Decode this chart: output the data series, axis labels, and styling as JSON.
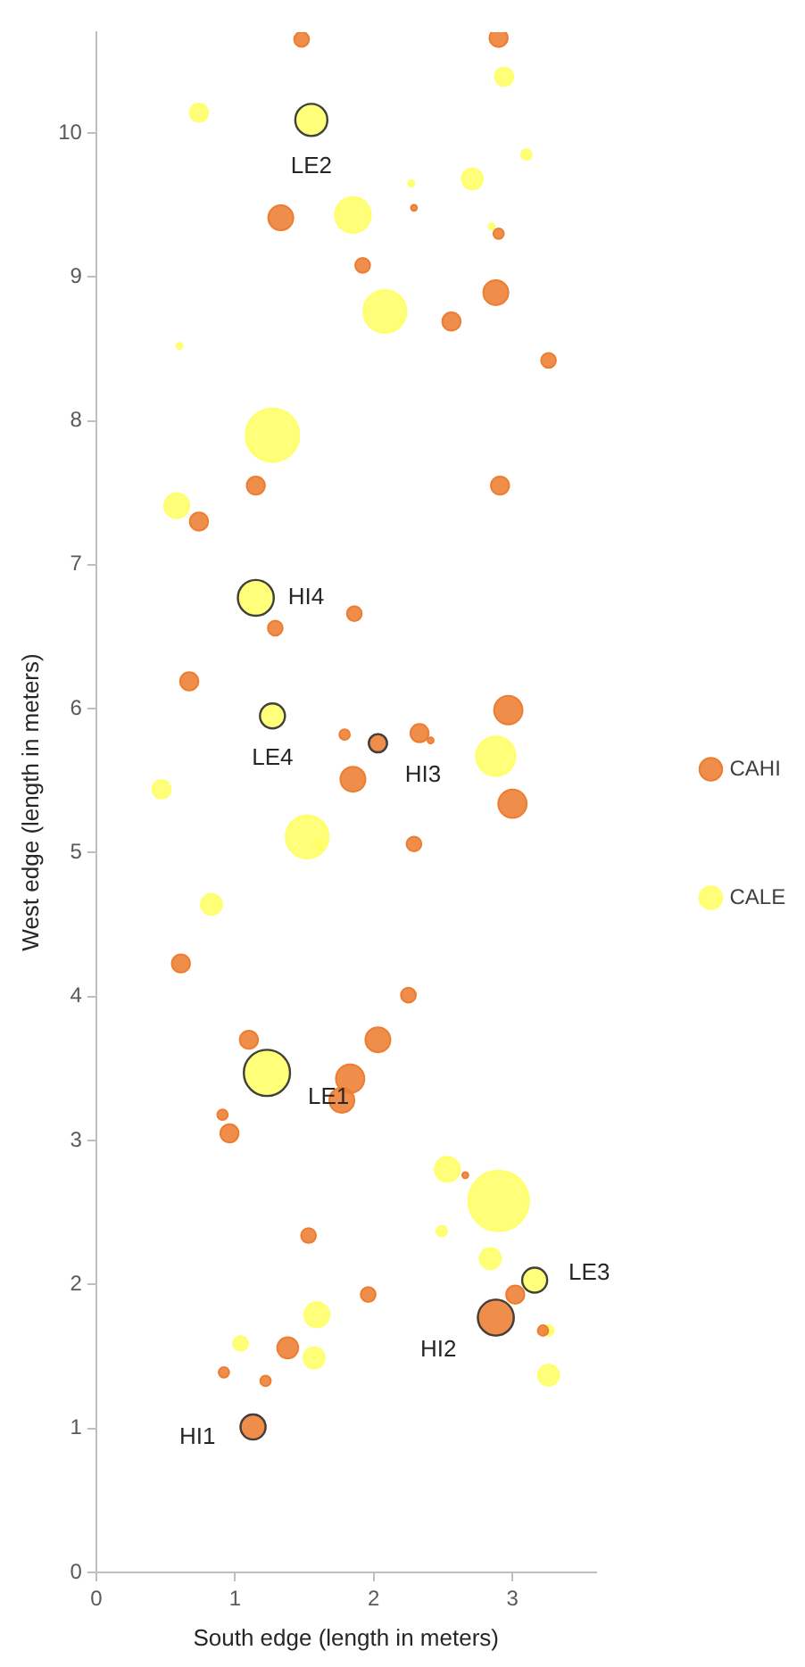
{
  "chart_data": {
    "type": "bubble",
    "xlabel": "South edge (length in meters)",
    "ylabel": "West edge (length in meters)",
    "xlim": [
      0,
      3.6
    ],
    "xticks": [
      0,
      1,
      2,
      3
    ],
    "ylim": [
      0,
      10.7
    ],
    "yticks": [
      0,
      1,
      2,
      3,
      4,
      5,
      6,
      7,
      8,
      9,
      10
    ],
    "grid": false,
    "legend": "right",
    "series": [
      {
        "name": "CAHI",
        "color": "#ed7d31",
        "x": [
          1.48,
          2.9,
          1.33,
          2.29,
          2.9,
          1.92,
          2.88,
          2.56,
          3.26,
          2.91,
          1.15,
          0.74,
          1.29,
          1.86,
          0.67,
          1.79,
          2.33,
          2.41,
          2.03,
          1.85,
          2.97,
          3.0,
          2.29,
          0.61,
          2.25,
          1.1,
          2.03,
          1.83,
          1.77,
          0.91,
          0.96,
          2.66,
          1.53,
          1.96,
          3.02,
          2.88,
          3.22,
          1.38,
          0.92,
          1.22,
          1.13
        ],
        "values": [
          10.65,
          10.66,
          9.41,
          9.48,
          9.3,
          9.08,
          8.89,
          8.69,
          8.42,
          7.55,
          7.55,
          7.3,
          6.56,
          6.66,
          6.19,
          5.82,
          5.83,
          5.78,
          5.76,
          5.51,
          5.99,
          5.34,
          5.06,
          4.23,
          4.01,
          3.7,
          3.7,
          3.43,
          3.28,
          3.18,
          3.05,
          2.76,
          2.34,
          1.93,
          1.93,
          1.77,
          1.68,
          1.56,
          1.39,
          1.33,
          1.01
        ],
        "sizes": [
          0.06,
          0.09,
          0.17,
          0.01,
          0.03,
          0.06,
          0.17,
          0.09,
          0.06,
          0.09,
          0.09,
          0.09,
          0.06,
          0.06,
          0.09,
          0.03,
          0.09,
          0.01,
          0.09,
          0.17,
          0.22,
          0.22,
          0.06,
          0.09,
          0.06,
          0.09,
          0.17,
          0.22,
          0.17,
          0.03,
          0.09,
          0.01,
          0.06,
          0.06,
          0.09,
          0.35,
          0.03,
          0.12,
          0.03,
          0.03,
          0.17
        ]
      },
      {
        "name": "CALE",
        "color": "#ffff66",
        "x": [
          0.74,
          1.55,
          2.94,
          3.1,
          2.27,
          2.71,
          2.85,
          1.85,
          2.08,
          0.6,
          1.27,
          0.58,
          1.15,
          1.27,
          0.47,
          2.88,
          1.52,
          1.6,
          0.83,
          1.23,
          2.53,
          2.9,
          2.49,
          2.84,
          3.16,
          3.26,
          1.59,
          1.04,
          1.57,
          3.26
        ],
        "values": [
          10.14,
          10.09,
          10.39,
          9.85,
          9.65,
          9.68,
          9.35,
          9.43,
          8.76,
          8.52,
          7.9,
          7.41,
          6.77,
          5.95,
          5.44,
          5.67,
          5.11,
          5.06,
          4.64,
          3.47,
          2.8,
          2.58,
          2.37,
          2.18,
          2.03,
          1.68,
          1.79,
          1.59,
          1.49,
          1.37
        ],
        "sizes": [
          0.09,
          0.28,
          0.09,
          0.03,
          0.01,
          0.12,
          0.01,
          0.35,
          0.5,
          0.01,
          0.78,
          0.17,
          0.35,
          0.17,
          0.09,
          0.42,
          0.5,
          0.03,
          0.12,
          0.58,
          0.17,
          1,
          0.03,
          0.12,
          0.17,
          0.03,
          0.17,
          0.06,
          0.12,
          0.12
        ]
      }
    ],
    "annotations": [
      {
        "text": "LE2",
        "x": 1.55,
        "y": 10.09
      },
      {
        "text": "HI4",
        "x": 1.15,
        "y": 6.77
      },
      {
        "text": "LE4",
        "x": 1.27,
        "y": 5.95
      },
      {
        "text": "HI3",
        "x": 2.03,
        "y": 5.76
      },
      {
        "text": "LE1",
        "x": 1.23,
        "y": 3.47
      },
      {
        "text": "LE3",
        "x": 3.16,
        "y": 2.03
      },
      {
        "text": "HI2",
        "x": 2.88,
        "y": 1.77
      },
      {
        "text": "HI1",
        "x": 1.13,
        "y": 1.01
      }
    ]
  }
}
